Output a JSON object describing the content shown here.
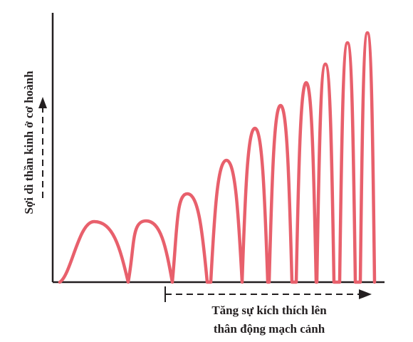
{
  "colors": {
    "wave": "#e8606c",
    "axis": "#231f20",
    "arrow": "#231f20"
  },
  "y_label": "Sợi dì thần kinh ở cơ hoành",
  "x_label_line1": "Tăng sự kích thích lên",
  "x_label_line2": "thân động mạch cảnh"
}
